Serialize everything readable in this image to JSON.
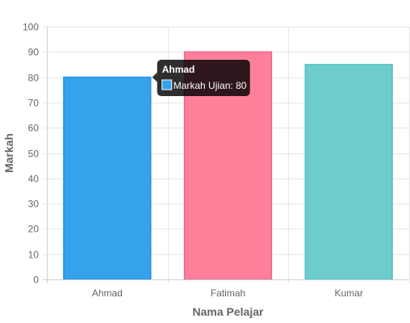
{
  "chart_data": {
    "type": "bar",
    "categories": [
      "Ahmad",
      "Fatimah",
      "Kumar"
    ],
    "series": [
      {
        "name": "Markah Ujian",
        "values": [
          80,
          90,
          85
        ]
      }
    ],
    "xlabel": "Nama Pelajar",
    "ylabel": "Markah",
    "ylim": [
      0,
      100
    ],
    "yticks": [
      0,
      10,
      20,
      30,
      40,
      50,
      60,
      70,
      80,
      90,
      100
    ],
    "grid": true,
    "bar_colors": [
      {
        "fill": "#36a2eb",
        "border": "#1e90e6"
      },
      {
        "fill": "#ff809b",
        "border": "#f5608a"
      },
      {
        "fill": "#6dcdcd",
        "border": "#4bc0c0"
      }
    ]
  },
  "tooltip": {
    "visible": true,
    "title": "Ahmad",
    "label": "Markah Ujian: 80",
    "swatch_color": "#36a2eb"
  }
}
